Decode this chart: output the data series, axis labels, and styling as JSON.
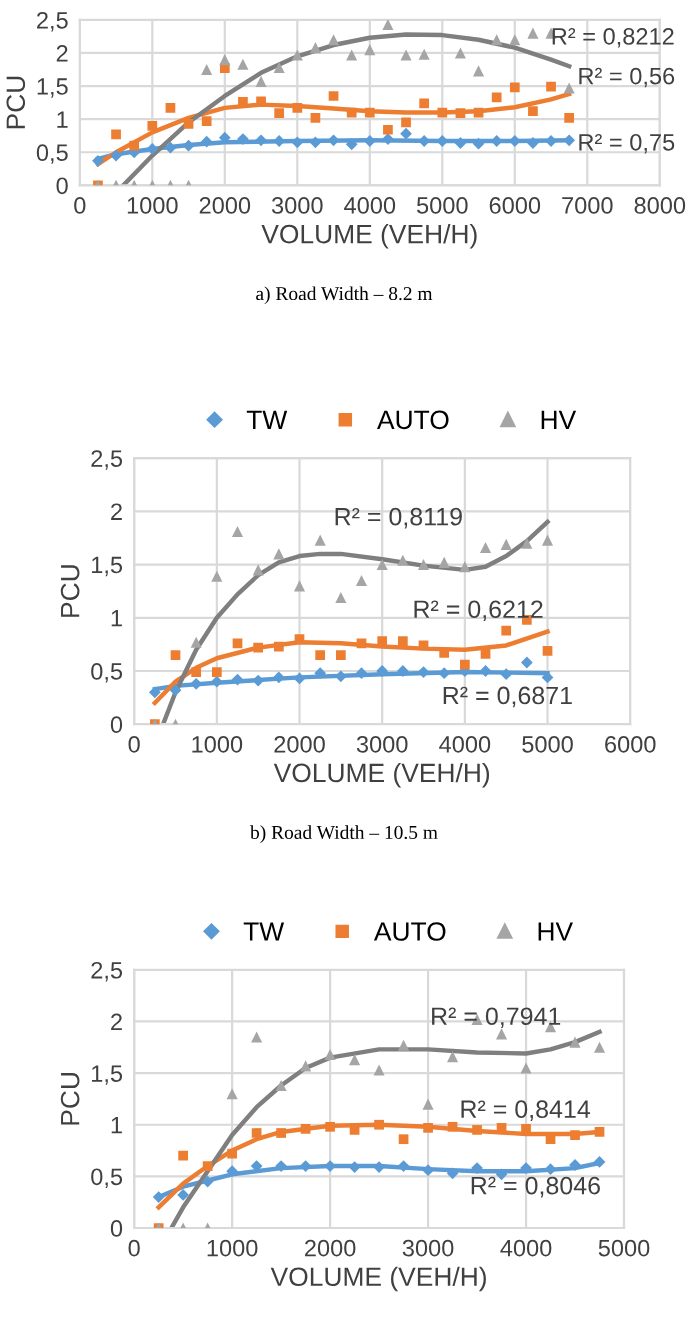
{
  "chart_data": [
    {
      "type": "scatter",
      "xlabel": "VOLUME (VEH/H)",
      "ylabel": "PCU",
      "xlim": [
        0,
        8000
      ],
      "xticks": [
        0,
        1000,
        2000,
        3000,
        4000,
        5000,
        6000,
        7000,
        8000
      ],
      "ylim": [
        0,
        2.5
      ],
      "yticks": [
        0,
        {
          "value": 0.5,
          "label": "0,5"
        },
        1,
        {
          "value": 1.5,
          "label": "1,5"
        },
        2,
        {
          "value": 2.5,
          "label": "2,5"
        }
      ],
      "grid": true,
      "legend": false,
      "x": [
        250,
        500,
        750,
        1000,
        1250,
        1500,
        1750,
        2000,
        2250,
        2500,
        2750,
        3000,
        3250,
        3500,
        3750,
        4000,
        4250,
        4500,
        4750,
        5000,
        5250,
        5500,
        5750,
        6000,
        6250,
        6500,
        6750
      ],
      "series": [
        {
          "color": "#5b9bd5",
          "marker": "diamond",
          "values": [
            0.37,
            0.45,
            0.5,
            0.55,
            0.57,
            0.6,
            0.66,
            0.72,
            0.7,
            0.68,
            0.67,
            0.65,
            0.65,
            0.68,
            0.62,
            0.67,
            0.7,
            0.78,
            0.67,
            0.67,
            0.64,
            0.63,
            0.67,
            0.67,
            0.64,
            0.67,
            0.68
          ]
        },
        {
          "color": "#ed7d31",
          "marker": "square",
          "values": [
            0,
            0.77,
            0.6,
            0.9,
            1.17,
            0.93,
            0.97,
            1.77,
            1.26,
            1.27,
            1.09,
            1.17,
            1.02,
            1.35,
            1.1,
            1.1,
            0.84,
            0.95,
            1.24,
            1.1,
            1.09,
            1.1,
            1.33,
            1.48,
            1.12,
            1.49,
            1.02
          ]
        },
        {
          "color": "#a5a5a5",
          "marker": "triangle",
          "values": [
            0,
            0,
            0,
            0,
            0,
            0,
            1.75,
            1.9,
            1.83,
            1.57,
            1.78,
            1.97,
            2.08,
            2.2,
            1.97,
            2.05,
            2.43,
            1.97,
            1.98,
            null,
            2.0,
            1.73,
            2.2,
            2.2,
            2.3,
            2.3,
            1.47
          ]
        },
        {
          "type": "line",
          "color": "#5b9bd5",
          "marker": "none",
          "x": [
            250,
            500,
            1000,
            1500,
            2000,
            3000,
            4000,
            5000,
            6000,
            6750
          ],
          "values": [
            0.4,
            0.47,
            0.55,
            0.61,
            0.65,
            0.67,
            0.68,
            0.67,
            0.67,
            0.68
          ]
        },
        {
          "type": "line",
          "color": "#ed7d31",
          "marker": "none",
          "x": [
            250,
            500,
            1000,
            1500,
            2000,
            2500,
            3000,
            3500,
            4000,
            4500,
            5000,
            5500,
            6000,
            6500,
            6750
          ],
          "values": [
            0.32,
            0.5,
            0.8,
            1.02,
            1.17,
            1.22,
            1.2,
            1.16,
            1.12,
            1.1,
            1.1,
            1.12,
            1.18,
            1.3,
            1.38
          ]
        },
        {
          "type": "line",
          "color": "#7f7f7f",
          "marker": "none",
          "x": [
            600,
            1000,
            1500,
            2000,
            2500,
            3000,
            3500,
            4000,
            4500,
            5000,
            5500,
            6000,
            6500,
            6750
          ],
          "values": [
            0,
            0.45,
            0.95,
            1.35,
            1.7,
            1.95,
            2.12,
            2.23,
            2.28,
            2.27,
            2.2,
            2.08,
            1.9,
            1.8
          ]
        }
      ],
      "annotations": [
        "R² = 0,8212",
        "R² = 0,56",
        "R² = 0,75",
        "a) Road Width – 8.2 m"
      ]
    },
    {
      "type": "scatter",
      "xlabel": "VOLUME (VEH/H)",
      "ylabel": "PCU",
      "xlim": [
        0,
        6000
      ],
      "xticks": [
        0,
        1000,
        2000,
        3000,
        4000,
        5000,
        6000
      ],
      "ylim": [
        0,
        2.5
      ],
      "yticks": [
        0,
        {
          "value": 0.5,
          "label": "0,5"
        },
        1,
        {
          "value": 1.5,
          "label": "1,5"
        },
        2,
        {
          "value": 2.5,
          "label": "2,5"
        }
      ],
      "grid": true,
      "legend": "top",
      "x": [
        250,
        500,
        750,
        1000,
        1250,
        1500,
        1750,
        2000,
        2250,
        2500,
        2750,
        3000,
        3250,
        3500,
        3750,
        4000,
        4250,
        4500,
        4750,
        5000
      ],
      "series": [
        {
          "name": "TW",
          "color": "#5b9bd5",
          "marker": "diamond",
          "values": [
            0.3,
            0.32,
            0.38,
            0.4,
            0.42,
            0.41,
            0.44,
            0.43,
            0.48,
            0.45,
            0.48,
            0.5,
            0.5,
            0.49,
            0.48,
            0.5,
            0.5,
            0.47,
            0.58,
            0.44
          ]
        },
        {
          "name": "AUTO",
          "color": "#ed7d31",
          "marker": "square",
          "values": [
            0,
            0.65,
            0.49,
            0.49,
            0.76,
            0.72,
            0.73,
            0.8,
            0.65,
            0.65,
            0.76,
            0.78,
            0.78,
            0.74,
            0.67,
            0.56,
            0.66,
            0.88,
            0.98,
            0.69
          ]
        },
        {
          "name": "HV",
          "color": "#a5a5a5",
          "marker": "triangle",
          "values": [
            0,
            0,
            0.77,
            1.39,
            1.81,
            1.45,
            1.6,
            1.3,
            1.73,
            1.19,
            1.35,
            1.5,
            1.54,
            1.5,
            1.52,
            1.48,
            1.66,
            1.69,
            1.7,
            1.73
          ]
        },
        {
          "type": "line",
          "color": "#5b9bd5",
          "marker": "none",
          "x": [
            250,
            500,
            1000,
            2000,
            3000,
            4000,
            5000
          ],
          "values": [
            0.33,
            0.36,
            0.39,
            0.44,
            0.47,
            0.49,
            0.48
          ]
        },
        {
          "type": "line",
          "color": "#ed7d31",
          "marker": "none",
          "x": [
            250,
            500,
            750,
            1000,
            1500,
            2000,
            2500,
            3000,
            3500,
            4000,
            4500,
            5000
          ],
          "values": [
            0.2,
            0.4,
            0.53,
            0.62,
            0.72,
            0.77,
            0.76,
            0.73,
            0.71,
            0.7,
            0.74,
            0.87
          ]
        },
        {
          "type": "line",
          "color": "#7f7f7f",
          "marker": "none",
          "x": [
            350,
            500,
            750,
            1000,
            1250,
            1500,
            1750,
            2000,
            2250,
            2500,
            3000,
            3500,
            4000,
            4250,
            4500,
            4750,
            5000
          ],
          "values": [
            0,
            0.3,
            0.7,
            1.0,
            1.22,
            1.4,
            1.52,
            1.58,
            1.6,
            1.6,
            1.55,
            1.49,
            1.45,
            1.48,
            1.58,
            1.72,
            1.9
          ]
        }
      ],
      "annotations": [
        "R² = 0,8119",
        "R² = 0,6212",
        "R² = 0,6871",
        "b) Road Width – 10.5 m"
      ]
    },
    {
      "type": "scatter",
      "xlabel": "VOLUME (VEH/H)",
      "ylabel": "PCU",
      "xlim": [
        0,
        5000
      ],
      "xticks": [
        0,
        1000,
        2000,
        3000,
        4000,
        5000
      ],
      "ylim": [
        0,
        2.5
      ],
      "yticks": [
        0,
        {
          "value": 0.5,
          "label": "0,5"
        },
        1,
        {
          "value": 1.5,
          "label": "1,5"
        },
        2,
        {
          "value": 2.5,
          "label": "2,5"
        }
      ],
      "grid": true,
      "legend": "top",
      "x": [
        250,
        500,
        750,
        1000,
        1250,
        1500,
        1750,
        2000,
        2250,
        2500,
        2750,
        3000,
        3250,
        3500,
        3750,
        4000,
        4250,
        4500,
        4750
      ],
      "series": [
        {
          "name": "TW",
          "color": "#5b9bd5",
          "marker": "diamond",
          "values": [
            0.3,
            0.32,
            0.45,
            0.55,
            0.6,
            0.6,
            0.6,
            0.6,
            0.59,
            0.59,
            0.6,
            0.56,
            0.53,
            0.58,
            0.52,
            0.58,
            0.57,
            0.61,
            0.64
          ]
        },
        {
          "name": "AUTO",
          "color": "#ed7d31",
          "marker": "square",
          "values": [
            0,
            0.7,
            0.6,
            0.72,
            0.92,
            0.92,
            0.96,
            0.98,
            0.95,
            1.0,
            0.86,
            0.97,
            0.98,
            0.95,
            0.97,
            0.96,
            0.86,
            0.9,
            0.93
          ]
        },
        {
          "name": "HV",
          "color": "#a5a5a5",
          "marker": "triangle",
          "values": [
            0,
            0,
            0,
            1.3,
            1.85,
            1.38,
            1.57,
            1.68,
            1.63,
            1.53,
            1.77,
            1.2,
            1.66,
            2.02,
            1.88,
            1.55,
            1.95,
            1.8,
            1.75
          ]
        },
        {
          "type": "line",
          "color": "#5b9bd5",
          "marker": "none",
          "x": [
            250,
            500,
            750,
            1000,
            1500,
            2000,
            2500,
            3000,
            3500,
            4000,
            4500,
            4750
          ],
          "values": [
            0.3,
            0.4,
            0.46,
            0.52,
            0.58,
            0.6,
            0.6,
            0.57,
            0.55,
            0.55,
            0.58,
            0.63
          ]
        },
        {
          "type": "line",
          "color": "#ed7d31",
          "marker": "none",
          "x": [
            250,
            500,
            750,
            1000,
            1250,
            1500,
            2000,
            2500,
            3000,
            3500,
            4000,
            4500,
            4750
          ],
          "values": [
            0.2,
            0.43,
            0.6,
            0.75,
            0.86,
            0.93,
            0.99,
            1.0,
            0.98,
            0.94,
            0.91,
            0.91,
            0.93
          ]
        },
        {
          "type": "line",
          "color": "#7f7f7f",
          "marker": "none",
          "x": [
            380,
            500,
            750,
            1000,
            1250,
            1500,
            1750,
            2000,
            2500,
            3000,
            3500,
            4000,
            4250,
            4500,
            4750
          ],
          "values": [
            0,
            0.2,
            0.55,
            0.9,
            1.17,
            1.38,
            1.55,
            1.65,
            1.73,
            1.73,
            1.7,
            1.69,
            1.73,
            1.8,
            1.9
          ]
        }
      ],
      "annotations": [
        "R² = 0,7941",
        "R² = 0,8414",
        "R² = 0,8046"
      ]
    }
  ]
}
